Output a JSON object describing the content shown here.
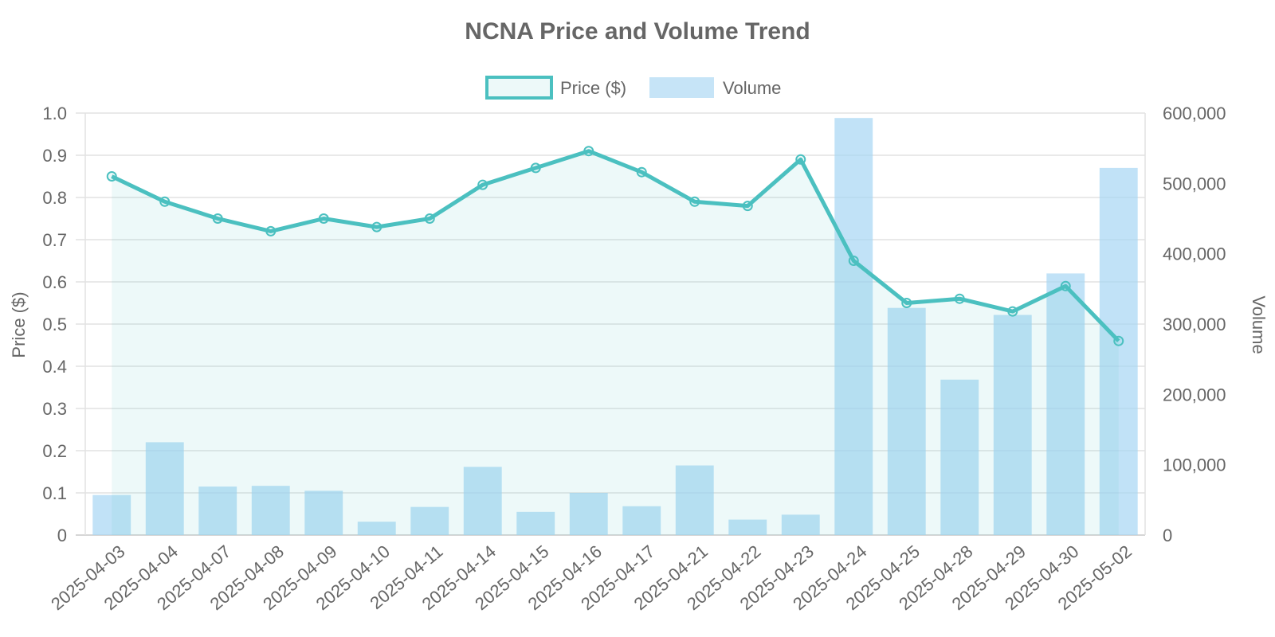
{
  "chart_data": {
    "type": "bar",
    "title": "NCNA Price and Volume Trend",
    "categories": [
      "2025-04-03",
      "2025-04-04",
      "2025-04-07",
      "2025-04-08",
      "2025-04-09",
      "2025-04-10",
      "2025-04-11",
      "2025-04-14",
      "2025-04-15",
      "2025-04-16",
      "2025-04-17",
      "2025-04-21",
      "2025-04-22",
      "2025-04-23",
      "2025-04-24",
      "2025-04-25",
      "2025-04-28",
      "2025-04-29",
      "2025-04-30",
      "2025-05-02"
    ],
    "series": [
      {
        "name": "Price ($)",
        "type": "line",
        "axis": "left",
        "values": [
          0.85,
          0.79,
          0.75,
          0.72,
          0.75,
          0.73,
          0.75,
          0.83,
          0.87,
          0.91,
          0.86,
          0.79,
          0.78,
          0.89,
          0.65,
          0.55,
          0.56,
          0.53,
          0.59,
          0.46
        ],
        "color": "#4bc0c0"
      },
      {
        "name": "Volume",
        "type": "bar",
        "axis": "right",
        "values": [
          57000,
          132000,
          69000,
          70000,
          63000,
          19000,
          40000,
          97000,
          33000,
          60000,
          41000,
          99000,
          22000,
          29000,
          593000,
          323000,
          221000,
          313000,
          372000,
          522000
        ],
        "color": "#a6d6f4"
      }
    ],
    "ylabel": "Price ($)",
    "y2label": "Volume",
    "ylim": [
      0,
      1.0
    ],
    "y2lim": [
      0,
      600000
    ],
    "yticks": [
      "0",
      "0.1",
      "0.2",
      "0.3",
      "0.4",
      "0.5",
      "0.6",
      "0.7",
      "0.8",
      "0.9",
      "1.0"
    ],
    "y2ticks": [
      "0",
      "100,000",
      "200,000",
      "300,000",
      "400,000",
      "500,000",
      "600,000"
    ],
    "grid": true,
    "legend": "top-center"
  }
}
